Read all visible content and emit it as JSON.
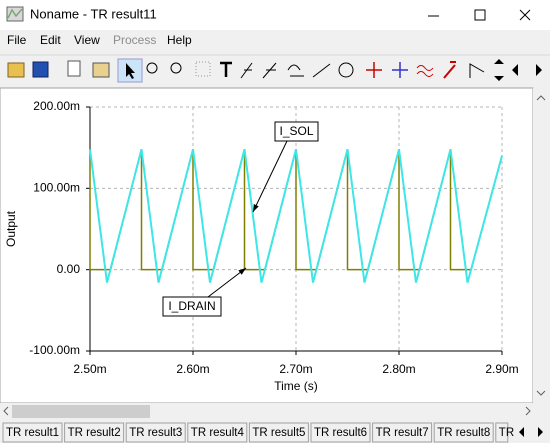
{
  "window": {
    "title": "Noname - TR result11"
  },
  "menu": [
    "File",
    "Edit",
    "View",
    "Process",
    "Help"
  ],
  "tabs": [
    "TR result1",
    "TR result2",
    "TR result3",
    "TR result4",
    "TR result5",
    "TR result6",
    "TR result7",
    "TR result8",
    "TR"
  ],
  "chart_data": {
    "type": "line",
    "x_label": "Time (s)",
    "y_label": "Output",
    "series": [
      {
        "name": "I_SOL",
        "color": "#3ee6e6",
        "x": [
          2.5,
          2.5165,
          2.55,
          2.5665,
          2.6,
          2.6165,
          2.65,
          2.6665,
          2.7,
          2.7165,
          2.75,
          2.7665,
          2.8,
          2.8165,
          2.85,
          2.8665,
          2.9
        ],
        "values": [
          148,
          -16,
          148,
          -16,
          148,
          -16,
          148,
          -16,
          148,
          -16,
          148,
          -16,
          148,
          -16,
          148,
          -16,
          140
        ]
      },
      {
        "name": "I_DRAIN",
        "color": "#808000",
        "x": [
          2.5,
          2.5,
          2.52,
          2.55,
          2.55,
          2.57,
          2.6,
          2.6,
          2.62,
          2.65,
          2.65,
          2.67,
          2.7,
          2.7,
          2.72,
          2.75,
          2.75,
          2.77,
          2.8,
          2.8,
          2.82,
          2.85,
          2.85,
          2.87,
          2.9
        ],
        "values": [
          148,
          0,
          0,
          148,
          0,
          0,
          148,
          0,
          0,
          148,
          0,
          0,
          148,
          0,
          0,
          148,
          0,
          0,
          148,
          0,
          0,
          148,
          0,
          0,
          140
        ]
      }
    ],
    "xlim": [
      2.5,
      2.9
    ],
    "xticks": [
      {
        "value": 2.5,
        "label": "2.50m"
      },
      {
        "value": 2.6,
        "label": "2.60m"
      },
      {
        "value": 2.7,
        "label": "2.70m"
      },
      {
        "value": 2.8,
        "label": "2.80m"
      },
      {
        "value": 2.9,
        "label": "2.90m"
      }
    ],
    "ylim": [
      -100,
      200
    ],
    "yticks": [
      {
        "value": -100,
        "label": "-100.00m"
      },
      {
        "value": 0,
        "label": "0.00"
      },
      {
        "value": 100,
        "label": "100.00m"
      },
      {
        "value": 200,
        "label": "200.00m"
      }
    ],
    "grid": true
  }
}
